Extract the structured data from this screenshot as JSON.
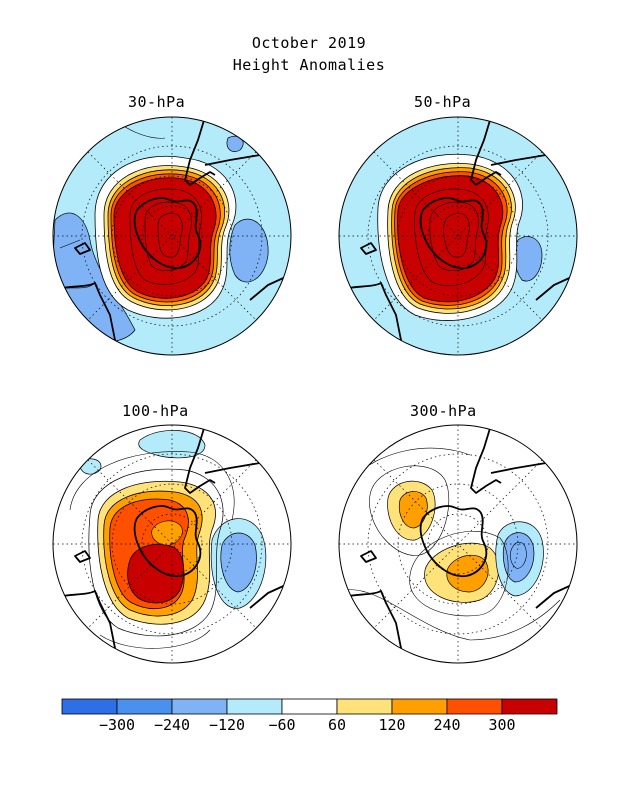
{
  "title": "October 2019",
  "subtitle": "Height Anomalies",
  "panels": [
    {
      "label": "30-hPa"
    },
    {
      "label": "50-hPa"
    },
    {
      "label": "100-hPa"
    },
    {
      "label": "300-hPa"
    }
  ],
  "colorbar": {
    "colors": [
      "#2e6fe8",
      "#4a90ee",
      "#7fb3f5",
      "#b4ebfa",
      "#ffffff",
      "#ffe37a",
      "#ffa000",
      "#ff5000",
      "#c80000"
    ],
    "labels": [
      "-300",
      "-240",
      "-120",
      "-60",
      "60",
      "120",
      "240",
      "300"
    ]
  }
}
